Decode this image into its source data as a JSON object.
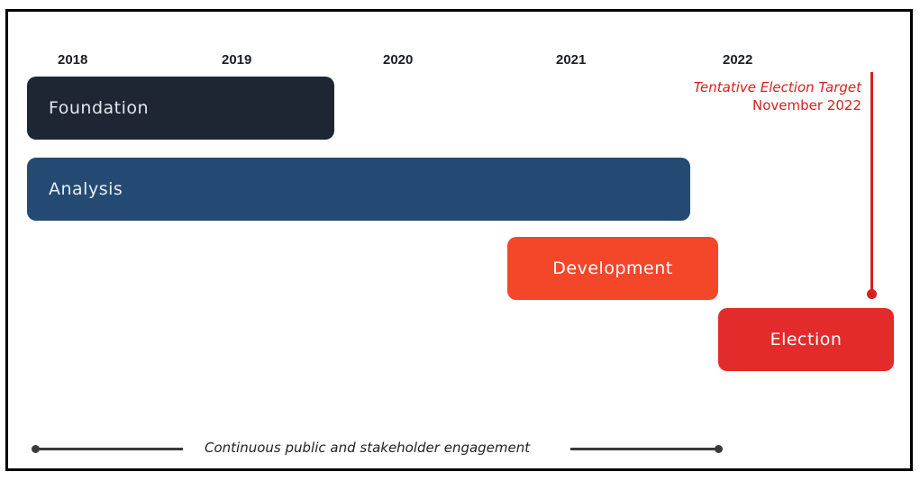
{
  "timeline": {
    "years": [
      "2018",
      "2019",
      "2020",
      "2021",
      "2022"
    ]
  },
  "phases": {
    "foundation": "Foundation",
    "analysis": "Analysis",
    "development": "Development",
    "election": "Election"
  },
  "target": {
    "line1": "Tentative Election Target",
    "line2": "November 2022"
  },
  "engagement": {
    "label": "Continuous public and stakeholder engagement"
  },
  "colors": {
    "foundation": "#1f2633",
    "analysis": "#244a73",
    "development": "#f4472a",
    "election": "#e32b2b",
    "target": "#d62020"
  }
}
